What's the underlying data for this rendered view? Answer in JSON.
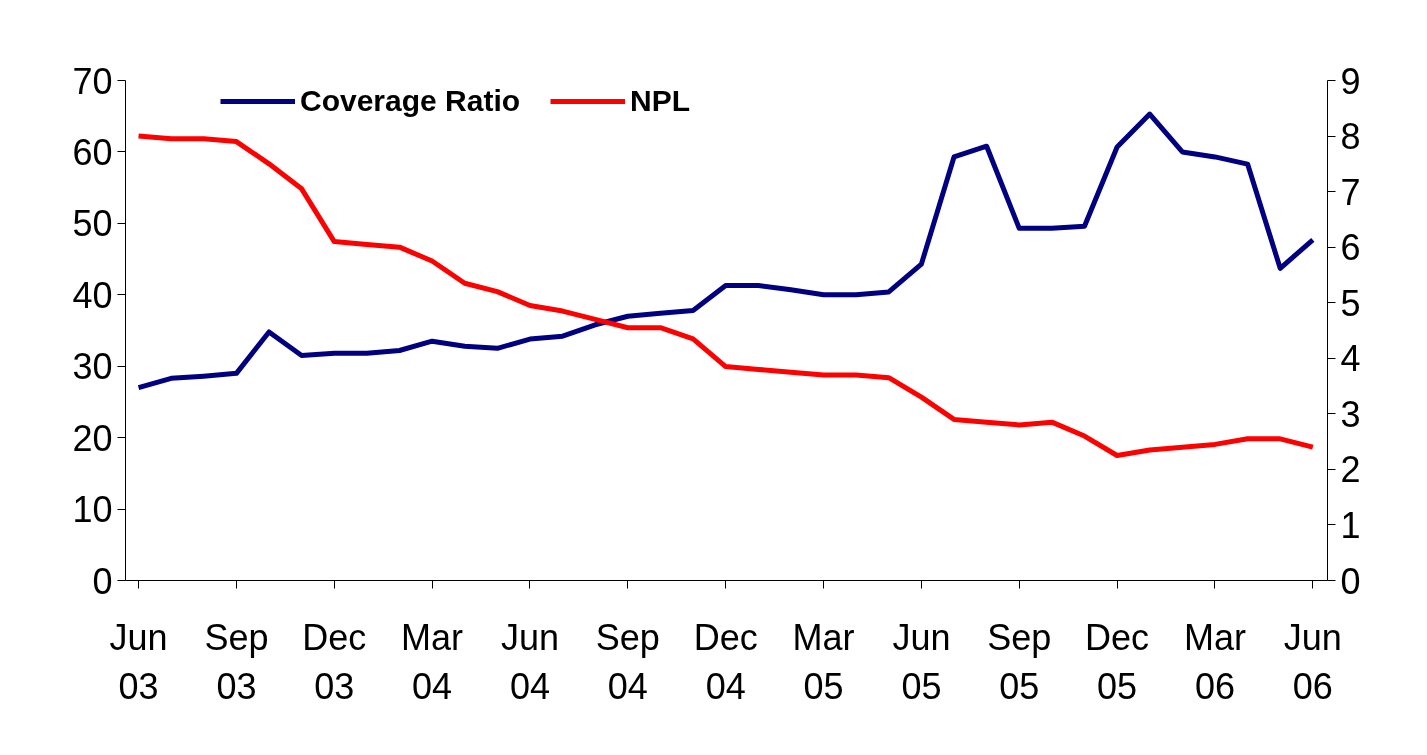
{
  "chart_data": {
    "type": "line",
    "categories": [
      "Jun 03",
      null,
      null,
      "Sep 03",
      null,
      null,
      "Dec 03",
      null,
      null,
      "Mar 04",
      null,
      null,
      "Jun 04",
      null,
      null,
      "Sep 04",
      null,
      null,
      "Dec 04",
      null,
      null,
      "Mar 05",
      null,
      null,
      "Jun 05",
      null,
      null,
      "Sep 05",
      null,
      null,
      "Dec 05",
      null,
      null,
      "Mar 06",
      null,
      null,
      "Jun 06"
    ],
    "series": [
      {
        "name": "Coverage Ratio",
        "color": "#000080",
        "values": [
          27,
          28.3,
          28.6,
          29,
          34.8,
          31.5,
          31.8,
          31.8,
          32.2,
          33.5,
          32.8,
          32.5,
          33.8,
          34.2,
          35.8,
          37,
          37.4,
          37.8,
          41.3,
          41.3,
          40.7,
          40,
          40,
          40.4,
          44.3,
          59.3,
          60.8,
          49.3,
          49.3,
          49.6,
          60.7,
          65.3,
          60,
          59.3,
          58.3,
          43.7,
          47.7
        ]
      },
      {
        "name": "NPL",
        "color": "#ff0000",
        "axis": "y2",
        "values": [
          8.0,
          7.95,
          7.95,
          7.9,
          7.5,
          7.05,
          6.1,
          6.05,
          6.0,
          5.75,
          5.35,
          5.2,
          4.95,
          4.85,
          4.7,
          4.55,
          4.55,
          4.35,
          3.85,
          3.8,
          3.75,
          3.7,
          3.7,
          3.65,
          3.3,
          2.9,
          2.85,
          2.8,
          2.85,
          2.6,
          2.25,
          2.35,
          2.4,
          2.45,
          2.55,
          2.55,
          2.4
        ]
      }
    ],
    "ylim": [
      0,
      70
    ],
    "yticks": [
      0,
      10,
      20,
      30,
      40,
      50,
      60,
      70
    ],
    "y2lim": [
      0,
      9
    ],
    "y2ticks": [
      0,
      1,
      2,
      3,
      4,
      5,
      6,
      7,
      8,
      9
    ],
    "grid": false,
    "legend": "top left",
    "line_style": "solid",
    "marker": "none"
  }
}
